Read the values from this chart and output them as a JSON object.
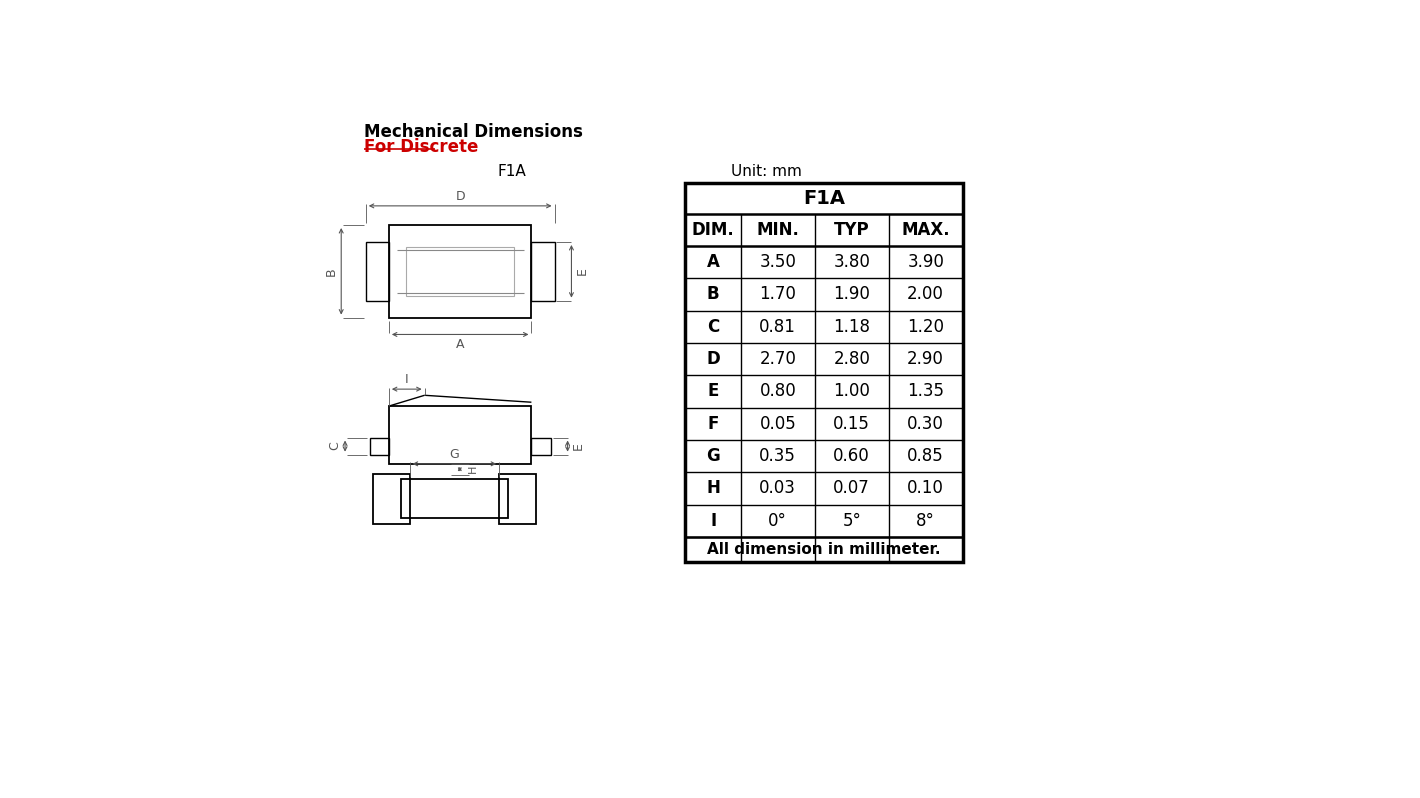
{
  "bg_color": "#ffffff",
  "title_text": "Mechanical Dimensions",
  "subtitle_text": "For Discrete",
  "subtitle_color": "#cc0000",
  "label_f1a": "F1A",
  "label_unit": "Unit: mm",
  "table_title": "F1A",
  "table_headers": [
    "DIM.",
    "MIN.",
    "TYP",
    "MAX."
  ],
  "table_rows": [
    [
      "A",
      "3.50",
      "3.80",
      "3.90"
    ],
    [
      "B",
      "1.70",
      "1.90",
      "2.00"
    ],
    [
      "C",
      "0.81",
      "1.18",
      "1.20"
    ],
    [
      "D",
      "2.70",
      "2.80",
      "2.90"
    ],
    [
      "E",
      "0.80",
      "1.00",
      "1.35"
    ],
    [
      "F",
      "0.05",
      "0.15",
      "0.30"
    ],
    [
      "G",
      "0.35",
      "0.60",
      "0.85"
    ],
    [
      "H",
      "0.03",
      "0.07",
      "0.10"
    ],
    [
      "I",
      "0°",
      "5°",
      "8°"
    ]
  ],
  "table_footer": "All dimension in millimeter.",
  "line_color": "#000000",
  "dim_line_color": "#555555"
}
